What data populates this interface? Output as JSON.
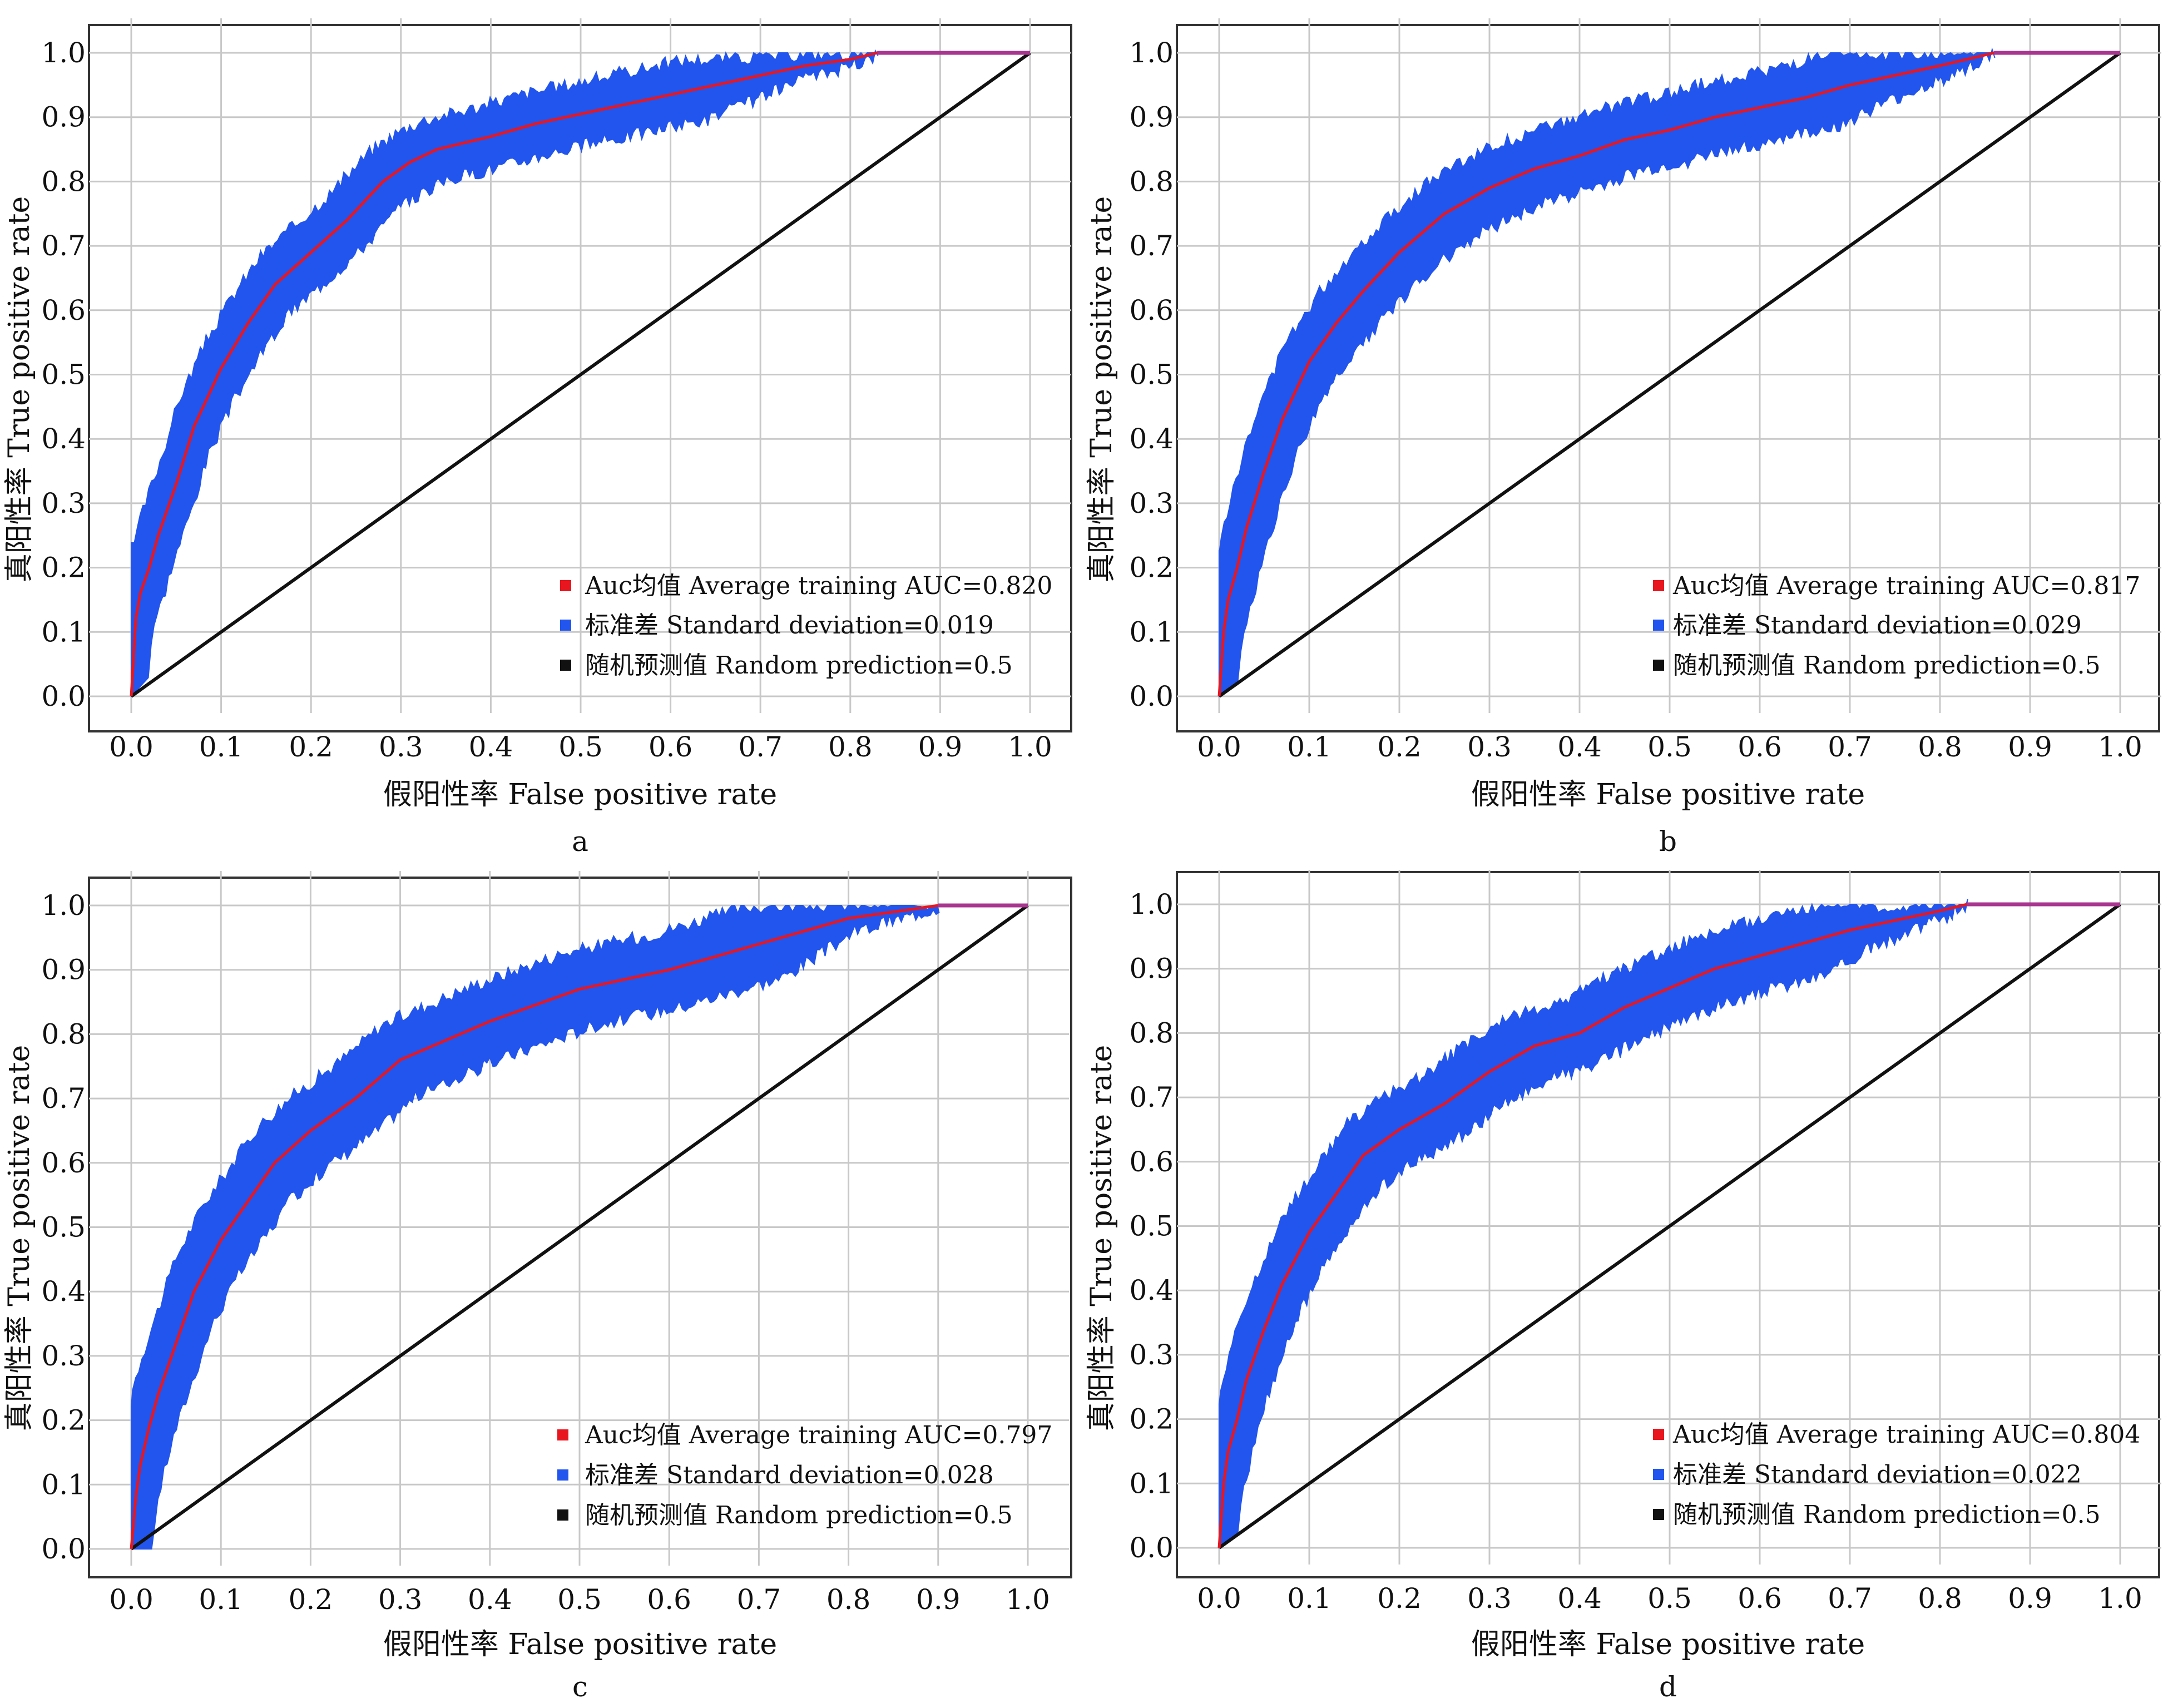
{
  "colors": {
    "band": "#2255ee",
    "mean": "#e8161f",
    "random": "#111111",
    "grid": "#c8c8c8",
    "axis": "#333333",
    "flat": "#a8358f"
  },
  "chart_data": [
    {
      "type": "line",
      "panel_label": "a",
      "xlabel": "假阳性率 False positive rate",
      "ylabel": "真阳性率 True positive rate",
      "xlim": [
        0,
        1
      ],
      "ylim": [
        0,
        1
      ],
      "x_ticks": [
        "0.0",
        "0.1",
        "0.2",
        "0.3",
        "0.4",
        "0.5",
        "0.6",
        "0.7",
        "0.8",
        "0.9",
        "1.0"
      ],
      "y_ticks": [
        "0.0",
        "0.1",
        "0.2",
        "0.3",
        "0.4",
        "0.5",
        "0.6",
        "0.7",
        "0.8",
        "0.9",
        "1.0"
      ],
      "grid": true,
      "legend_position": "bottom-right",
      "legend": [
        "Auc均值 Average training AUC=0.820",
        "标准差 Standard deviation=0.019",
        "随机预测值 Random prediction=0.5"
      ],
      "series": [
        {
          "name": "mean_roc",
          "x": [
            0,
            0.005,
            0.01,
            0.02,
            0.03,
            0.05,
            0.07,
            0.1,
            0.13,
            0.16,
            0.2,
            0.24,
            0.28,
            0.31,
            0.34,
            0.4,
            0.45,
            0.5,
            0.55,
            0.6,
            0.65,
            0.7,
            0.75,
            0.8,
            0.83,
            1.0
          ],
          "y": [
            0,
            0.12,
            0.16,
            0.2,
            0.25,
            0.33,
            0.42,
            0.51,
            0.58,
            0.64,
            0.69,
            0.74,
            0.8,
            0.83,
            0.85,
            0.87,
            0.89,
            0.905,
            0.92,
            0.935,
            0.95,
            0.965,
            0.98,
            0.99,
            1.0,
            1.0
          ],
          "band": 0.045
        },
        {
          "name": "random_prediction",
          "x": [
            0,
            1
          ],
          "y": [
            0,
            1
          ]
        }
      ]
    },
    {
      "type": "line",
      "panel_label": "b",
      "xlabel": "假阳性率 False positive rate",
      "ylabel": "真阳性率 True positive rate",
      "xlim": [
        0,
        1
      ],
      "ylim": [
        0,
        1
      ],
      "x_ticks": [
        "0.0",
        "0.1",
        "0.2",
        "0.3",
        "0.4",
        "0.5",
        "0.6",
        "0.7",
        "0.8",
        "0.9",
        "1.0"
      ],
      "y_ticks": [
        "0.0",
        "0.1",
        "0.2",
        "0.3",
        "0.4",
        "0.5",
        "0.6",
        "0.7",
        "0.8",
        "0.9",
        "1.0"
      ],
      "grid": true,
      "legend_position": "bottom-right",
      "legend": [
        "Auc均值 Average training AUC=0.817",
        "标准差 Standard deviation=0.029",
        "随机预测值 Random prediction=0.5"
      ],
      "series": [
        {
          "name": "mean_roc",
          "x": [
            0,
            0.005,
            0.01,
            0.02,
            0.03,
            0.05,
            0.07,
            0.1,
            0.13,
            0.16,
            0.2,
            0.25,
            0.3,
            0.35,
            0.4,
            0.45,
            0.5,
            0.55,
            0.6,
            0.65,
            0.7,
            0.75,
            0.8,
            0.86,
            1.0
          ],
          "y": [
            0,
            0.1,
            0.15,
            0.2,
            0.26,
            0.35,
            0.43,
            0.52,
            0.58,
            0.63,
            0.69,
            0.75,
            0.79,
            0.82,
            0.84,
            0.865,
            0.88,
            0.9,
            0.915,
            0.93,
            0.95,
            0.965,
            0.98,
            1.0,
            1.0
          ],
          "band": 0.05
        },
        {
          "name": "random_prediction",
          "x": [
            0,
            1
          ],
          "y": [
            0,
            1
          ]
        }
      ]
    },
    {
      "type": "line",
      "panel_label": "c",
      "xlabel": "假阳性率 False positive rate",
      "ylabel": "真阳性率 True positive rate",
      "xlim": [
        0,
        1
      ],
      "ylim": [
        0,
        1
      ],
      "x_ticks": [
        "0.0",
        "0.1",
        "0.2",
        "0.3",
        "0.4",
        "0.5",
        "0.6",
        "0.7",
        "0.8",
        "0.9",
        "1.0"
      ],
      "y_ticks": [
        "0.0",
        "0.1",
        "0.2",
        "0.3",
        "0.4",
        "0.5",
        "0.6",
        "0.7",
        "0.8",
        "0.9",
        "1.0"
      ],
      "grid": true,
      "legend_position": "bottom-right",
      "legend": [
        "Auc均值 Average training AUC=0.797",
        "标准差 Standard deviation=0.028",
        "随机预测值 Random prediction=0.5"
      ],
      "series": [
        {
          "name": "mean_roc",
          "x": [
            0,
            0.005,
            0.01,
            0.02,
            0.03,
            0.05,
            0.07,
            0.1,
            0.13,
            0.16,
            0.2,
            0.25,
            0.3,
            0.35,
            0.4,
            0.45,
            0.5,
            0.55,
            0.6,
            0.65,
            0.7,
            0.75,
            0.8,
            0.9,
            1.0
          ],
          "y": [
            0,
            0.08,
            0.13,
            0.19,
            0.24,
            0.32,
            0.4,
            0.48,
            0.54,
            0.6,
            0.65,
            0.7,
            0.76,
            0.79,
            0.82,
            0.845,
            0.87,
            0.885,
            0.9,
            0.92,
            0.94,
            0.96,
            0.98,
            1.0,
            1.0
          ],
          "band": 0.055
        },
        {
          "name": "random_prediction",
          "x": [
            0,
            1
          ],
          "y": [
            0,
            1
          ]
        }
      ]
    },
    {
      "type": "line",
      "panel_label": "d",
      "xlabel": "假阳性率 False positive rate",
      "ylabel": "真阳性率 True positive rate",
      "xlim": [
        0,
        1
      ],
      "ylim": [
        0,
        1
      ],
      "x_ticks": [
        "0.0",
        "0.1",
        "0.2",
        "0.3",
        "0.4",
        "0.5",
        "0.6",
        "0.7",
        "0.8",
        "0.9",
        "1.0"
      ],
      "y_ticks": [
        "0.0",
        "0.1",
        "0.2",
        "0.3",
        "0.4",
        "0.5",
        "0.6",
        "0.7",
        "0.8",
        "0.9",
        "1.0"
      ],
      "grid": true,
      "legend_position": "bottom-right",
      "legend": [
        "Auc均值 Average training AUC=0.804",
        "标准差 Standard deviation=0.022",
        "随机预测值 Random prediction=0.5"
      ],
      "series": [
        {
          "name": "mean_roc",
          "x": [
            0,
            0.005,
            0.01,
            0.02,
            0.03,
            0.05,
            0.07,
            0.1,
            0.13,
            0.16,
            0.2,
            0.25,
            0.3,
            0.35,
            0.4,
            0.45,
            0.5,
            0.55,
            0.6,
            0.65,
            0.7,
            0.75,
            0.8,
            0.83,
            1.0
          ],
          "y": [
            0,
            0.1,
            0.15,
            0.2,
            0.26,
            0.34,
            0.41,
            0.49,
            0.55,
            0.61,
            0.65,
            0.69,
            0.74,
            0.78,
            0.8,
            0.84,
            0.87,
            0.9,
            0.92,
            0.94,
            0.96,
            0.975,
            0.99,
            1.0,
            1.0
          ],
          "band": 0.05
        },
        {
          "name": "random_prediction",
          "x": [
            0,
            1
          ],
          "y": [
            0,
            1
          ]
        }
      ]
    }
  ]
}
